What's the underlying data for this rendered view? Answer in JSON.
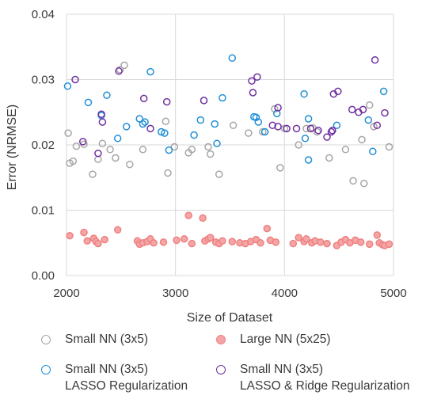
{
  "chart_data": {
    "type": "scatter",
    "xlabel": "Size of Dataset",
    "ylabel": "Error (NRMSE)",
    "xlim": [
      2000,
      5000
    ],
    "ylim": [
      0,
      0.04
    ],
    "x_ticks": [
      "2000",
      "3000",
      "4000",
      "5000"
    ],
    "y_ticks": [
      "0.00",
      "0.01",
      "0.02",
      "0.03",
      "0.04"
    ],
    "grid": true,
    "legend_position": "bottom",
    "series": [
      {
        "name": "Small NN (3x5)",
        "color": "#a6a6a6",
        "fill": "none",
        "points": [
          [
            2015,
            0.0218
          ],
          [
            2030,
            0.0172
          ],
          [
            2060,
            0.0175
          ],
          [
            2090,
            0.0198
          ],
          [
            2160,
            0.0201
          ],
          [
            2240,
            0.0155
          ],
          [
            2290,
            0.0178
          ],
          [
            2330,
            0.0202
          ],
          [
            2400,
            0.0193
          ],
          [
            2450,
            0.018
          ],
          [
            2490,
            0.0315
          ],
          [
            2530,
            0.0322
          ],
          [
            2580,
            0.017
          ],
          [
            2700,
            0.0193
          ],
          [
            2910,
            0.0236
          ],
          [
            2930,
            0.0157
          ],
          [
            2990,
            0.0197
          ],
          [
            3120,
            0.0188
          ],
          [
            3150,
            0.0193
          ],
          [
            3300,
            0.0197
          ],
          [
            3320,
            0.0186
          ],
          [
            3400,
            0.0155
          ],
          [
            3530,
            0.023
          ],
          [
            3670,
            0.0218
          ],
          [
            3800,
            0.022
          ],
          [
            3910,
            0.0255
          ],
          [
            3960,
            0.0165
          ],
          [
            4000,
            0.0225
          ],
          [
            4130,
            0.02
          ],
          [
            4200,
            0.0225
          ],
          [
            4260,
            0.0226
          ],
          [
            4300,
            0.022
          ],
          [
            4410,
            0.018
          ],
          [
            4560,
            0.0193
          ],
          [
            4630,
            0.0145
          ],
          [
            4710,
            0.0208
          ],
          [
            4730,
            0.0141
          ],
          [
            4780,
            0.0261
          ],
          [
            4820,
            0.0228
          ],
          [
            4960,
            0.0197
          ]
        ]
      },
      {
        "name": "Large NN (5x25)",
        "color": "#f08080",
        "fill": "#f4a6a6",
        "points": [
          [
            2030,
            0.0061
          ],
          [
            2160,
            0.0066
          ],
          [
            2190,
            0.0053
          ],
          [
            2250,
            0.0057
          ],
          [
            2270,
            0.0052
          ],
          [
            2290,
            0.0049
          ],
          [
            2350,
            0.0055
          ],
          [
            2470,
            0.007
          ],
          [
            2650,
            0.0053
          ],
          [
            2670,
            0.0048
          ],
          [
            2700,
            0.005
          ],
          [
            2740,
            0.0052
          ],
          [
            2770,
            0.0056
          ],
          [
            2800,
            0.005
          ],
          [
            2890,
            0.0051
          ],
          [
            3010,
            0.0054
          ],
          [
            3080,
            0.0056
          ],
          [
            3120,
            0.0092
          ],
          [
            3150,
            0.0049
          ],
          [
            3250,
            0.0088
          ],
          [
            3270,
            0.0053
          ],
          [
            3300,
            0.0056
          ],
          [
            3320,
            0.0058
          ],
          [
            3370,
            0.0051
          ],
          [
            3400,
            0.0049
          ],
          [
            3430,
            0.0053
          ],
          [
            3520,
            0.0052
          ],
          [
            3590,
            0.005
          ],
          [
            3640,
            0.0049
          ],
          [
            3690,
            0.0052
          ],
          [
            3740,
            0.0055
          ],
          [
            3780,
            0.005
          ],
          [
            3840,
            0.0072
          ],
          [
            3870,
            0.0054
          ],
          [
            3920,
            0.0051
          ],
          [
            4080,
            0.0049
          ],
          [
            4130,
            0.0058
          ],
          [
            4180,
            0.0052
          ],
          [
            4200,
            0.0056
          ],
          [
            4250,
            0.005
          ],
          [
            4280,
            0.0053
          ],
          [
            4330,
            0.0051
          ],
          [
            4390,
            0.0049
          ],
          [
            4480,
            0.0046
          ],
          [
            4520,
            0.0051
          ],
          [
            4560,
            0.0055
          ],
          [
            4600,
            0.005
          ],
          [
            4650,
            0.0054
          ],
          [
            4700,
            0.0051
          ],
          [
            4780,
            0.0048
          ],
          [
            4850,
            0.0062
          ],
          [
            4870,
            0.005
          ],
          [
            4900,
            0.0047
          ],
          [
            4920,
            0.0046
          ],
          [
            4960,
            0.0048
          ]
        ]
      },
      {
        "name": "Small NN (3x5)\nLASSO Regularization",
        "color": "#1f8fd6",
        "fill": "none",
        "points": [
          [
            2010,
            0.029
          ],
          [
            2200,
            0.0265
          ],
          [
            2320,
            0.0245
          ],
          [
            2370,
            0.0276
          ],
          [
            2470,
            0.021
          ],
          [
            2550,
            0.0228
          ],
          [
            2670,
            0.024
          ],
          [
            2700,
            0.0232
          ],
          [
            2720,
            0.0235
          ],
          [
            2770,
            0.0312
          ],
          [
            2870,
            0.022
          ],
          [
            2900,
            0.0218
          ],
          [
            2940,
            0.0192
          ],
          [
            3170,
            0.0215
          ],
          [
            3230,
            0.0238
          ],
          [
            3360,
            0.0232
          ],
          [
            3380,
            0.0202
          ],
          [
            3430,
            0.0272
          ],
          [
            3520,
            0.0333
          ],
          [
            3720,
            0.0243
          ],
          [
            3740,
            0.0242
          ],
          [
            3760,
            0.0235
          ],
          [
            3820,
            0.022
          ],
          [
            3930,
            0.0248
          ],
          [
            4180,
            0.0278
          ],
          [
            4190,
            0.021
          ],
          [
            4220,
            0.024
          ],
          [
            4220,
            0.0177
          ],
          [
            4480,
            0.023
          ],
          [
            4770,
            0.0238
          ],
          [
            4810,
            0.019
          ],
          [
            4910,
            0.0282
          ]
        ]
      },
      {
        "name": "Small NN (3x5)\nLASSO & Ridge Regularization",
        "color": "#7030a0",
        "fill": "none",
        "points": [
          [
            2080,
            0.03
          ],
          [
            2150,
            0.0205
          ],
          [
            2290,
            0.0187
          ],
          [
            2320,
            0.0247
          ],
          [
            2330,
            0.0235
          ],
          [
            2480,
            0.0313
          ],
          [
            2710,
            0.0271
          ],
          [
            2770,
            0.0225
          ],
          [
            2920,
            0.0266
          ],
          [
            3260,
            0.0268
          ],
          [
            3700,
            0.0298
          ],
          [
            3710,
            0.028
          ],
          [
            3750,
            0.0304
          ],
          [
            3890,
            0.023
          ],
          [
            3940,
            0.0257
          ],
          [
            3940,
            0.0228
          ],
          [
            4020,
            0.0225
          ],
          [
            4110,
            0.0225
          ],
          [
            4240,
            0.0225
          ],
          [
            4310,
            0.0222
          ],
          [
            4390,
            0.0212
          ],
          [
            4430,
            0.022
          ],
          [
            4440,
            0.0222
          ],
          [
            4450,
            0.0278
          ],
          [
            4490,
            0.0282
          ],
          [
            4620,
            0.0254
          ],
          [
            4680,
            0.025
          ],
          [
            4720,
            0.0254
          ],
          [
            4830,
            0.033
          ],
          [
            4850,
            0.023
          ],
          [
            4920,
            0.0249
          ]
        ]
      }
    ]
  }
}
